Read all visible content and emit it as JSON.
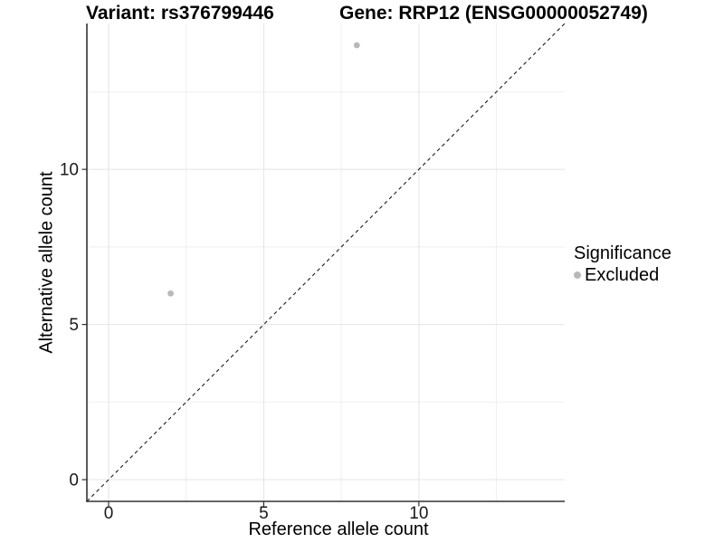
{
  "titles": {
    "variant": "Variant: rs376799446",
    "gene": "Gene: RRP12 (ENSG00000052749)"
  },
  "chart_data": {
    "type": "scatter",
    "title_left": "Variant: rs376799446",
    "title_right": "Gene: RRP12 (ENSG00000052749)",
    "xlabel": "Reference allele count",
    "ylabel": "Alternative allele count",
    "xlim": [
      -0.7,
      14.7
    ],
    "ylim": [
      -0.7,
      14.7
    ],
    "xticks": [
      0,
      5,
      10
    ],
    "yticks": [
      0,
      5,
      10
    ],
    "xticks_minor": [
      2.5,
      7.5,
      12.5
    ],
    "yticks_minor": [
      2.5,
      7.5,
      12.5
    ],
    "grid": true,
    "legend_position": "right",
    "identity_line": {
      "style": "dashed",
      "x1": -0.7,
      "y1": -0.7,
      "x2": 14.7,
      "y2": 14.7
    },
    "series": [
      {
        "name": "Excluded",
        "color": "#b9b9b9",
        "points": [
          [
            2,
            6
          ],
          [
            8,
            14
          ]
        ]
      }
    ],
    "legend": {
      "title": "Significance",
      "items": [
        {
          "label": "Excluded",
          "color": "#b9b9b9",
          "marker": "dot-icon"
        }
      ]
    },
    "colors": {
      "axis_line": "#333333",
      "tick_mark": "#333333",
      "tick_label": "#1a1a1a",
      "grid_major": "#e4e4e4",
      "grid_minor": "#efefef",
      "identity_line": "#1a1a1a",
      "background": "#ffffff"
    }
  }
}
